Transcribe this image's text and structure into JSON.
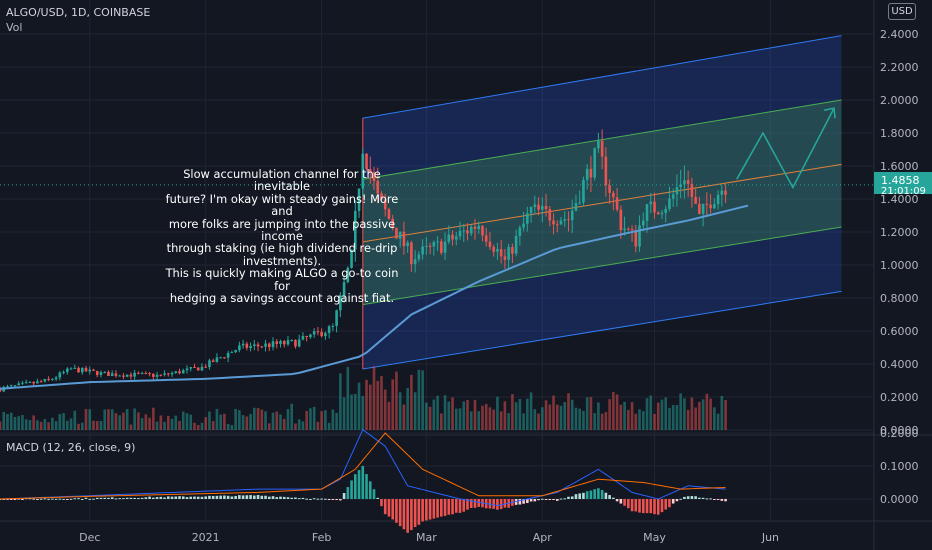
{
  "header": {
    "title": "ALGO/USD, 1D, COINBASE",
    "vol_label": "Vol",
    "macd_label": "MACD (12, 26, close, 9)",
    "currency": "USD"
  },
  "note": "Slow accumulation channel for the inevitable\nfuture? I'm okay with steady gains! More and\nmore folks are jumping into the passive income\nthrough staking (ie high dividend re-drip investments).\nThis is quickly making ALGO a go-to coin for\nhedging a savings account against fiat.",
  "last_price": {
    "value": "1.4858",
    "countdown": "21:01:09"
  },
  "colors": {
    "up": "#26a69a",
    "down": "#ef5350",
    "ma": "#5b9bd5",
    "channel_blue": "#2962ff",
    "channel_green": "#4caf50",
    "midline": "#f57c00",
    "macd_line": "#2962ff",
    "signal_line": "#ff6d00",
    "projection": "#26a69a"
  },
  "chart_data": [
    {
      "type": "candlestick",
      "title": "ALGO/USD, 1D, COINBASE",
      "ylim": [
        0.0,
        2.5
      ],
      "y_ticks": [
        "2.4000",
        "2.2000",
        "2.0000",
        "1.8000",
        "1.6000",
        "1.4000",
        "1.2000",
        "1.0000",
        "0.8000",
        "0.6000",
        "0.4000",
        "0.2000",
        "0.0000"
      ],
      "x_ticks": [
        "Dec",
        "2021",
        "Feb",
        "Mar",
        "Apr",
        "May",
        "Jun"
      ],
      "x_range": [
        "2020-11-07",
        "2021-06-20"
      ],
      "anchors": [
        [
          "2020-11-07",
          0.25
        ],
        [
          "2020-11-20",
          0.3
        ],
        [
          "2020-11-26",
          0.37
        ],
        [
          "2020-12-05",
          0.34
        ],
        [
          "2020-12-20",
          0.33
        ],
        [
          "2020-12-31",
          0.38
        ],
        [
          "2021-01-10",
          0.5
        ],
        [
          "2021-01-25",
          0.53
        ],
        [
          "2021-02-04",
          0.62
        ],
        [
          "2021-02-09",
          1.05
        ],
        [
          "2021-02-12",
          1.73
        ],
        [
          "2021-02-16",
          1.4
        ],
        [
          "2021-02-21",
          1.2
        ],
        [
          "2021-02-25",
          1.05
        ],
        [
          "2021-03-05",
          1.12
        ],
        [
          "2021-03-15",
          1.25
        ],
        [
          "2021-03-22",
          1.02
        ],
        [
          "2021-03-29",
          1.33
        ],
        [
          "2021-04-08",
          1.28
        ],
        [
          "2021-04-14",
          1.6
        ],
        [
          "2021-04-16",
          1.68
        ],
        [
          "2021-04-22",
          1.25
        ],
        [
          "2021-04-26",
          1.15
        ],
        [
          "2021-04-28",
          1.32
        ],
        [
          "2021-05-05",
          1.38
        ],
        [
          "2021-05-09",
          1.55
        ],
        [
          "2021-05-13",
          1.28
        ],
        [
          "2021-05-16",
          1.4
        ],
        [
          "2021-05-20",
          1.4858
        ]
      ],
      "ma_anchors": [
        [
          "2020-11-07",
          0.25
        ],
        [
          "2020-12-01",
          0.29
        ],
        [
          "2021-01-01",
          0.31
        ],
        [
          "2021-01-25",
          0.34
        ],
        [
          "2021-02-12",
          0.45
        ],
        [
          "2021-02-25",
          0.7
        ],
        [
          "2021-03-15",
          0.9
        ],
        [
          "2021-04-05",
          1.1
        ],
        [
          "2021-04-25",
          1.2
        ],
        [
          "2021-05-10",
          1.27
        ],
        [
          "2021-05-26",
          1.36
        ]
      ],
      "channel": {
        "start": "2021-02-12",
        "end": "2021-06-20",
        "mid_start": 1.14,
        "mid_end": 1.61,
        "inner_start": 1.52,
        "inner_end": 2.0,
        "inner_low_start": 0.76,
        "inner_low_end": 1.23,
        "outer_start": 1.89,
        "outer_end": 2.39,
        "outer_low_start": 0.37,
        "outer_low_end": 0.84
      },
      "projection": [
        [
          "2021-05-23",
          1.52
        ],
        [
          "2021-05-30",
          1.8
        ],
        [
          "2021-06-07",
          1.47
        ],
        [
          "2021-06-18",
          1.95
        ]
      ],
      "last_price": 1.4858
    },
    {
      "type": "bar",
      "title": "Vol",
      "note": "daily volume bars colored by candle direction"
    },
    {
      "type": "line",
      "title": "MACD (12, 26, close, 9)",
      "ylim": [
        -0.15,
        0.2
      ],
      "y_ticks": [
        "0.2000",
        "0.1000",
        "0.0000"
      ],
      "series": [
        {
          "name": "MACD",
          "anchors": [
            [
              "2020-11-07",
              0.0
            ],
            [
              "2020-12-01",
              0.01
            ],
            [
              "2021-01-15",
              0.03
            ],
            [
              "2021-02-01",
              0.03
            ],
            [
              "2021-02-06",
              0.06
            ],
            [
              "2021-02-12",
              0.21
            ],
            [
              "2021-02-18",
              0.16
            ],
            [
              "2021-02-24",
              0.04
            ],
            [
              "2021-03-10",
              0.0
            ],
            [
              "2021-03-20",
              -0.02
            ],
            [
              "2021-04-05",
              0.02
            ],
            [
              "2021-04-16",
              0.09
            ],
            [
              "2021-04-25",
              0.02
            ],
            [
              "2021-05-02",
              0.0
            ],
            [
              "2021-05-10",
              0.04
            ],
            [
              "2021-05-20",
              0.03
            ]
          ]
        },
        {
          "name": "Signal",
          "anchors": [
            [
              "2020-11-07",
              0.0
            ],
            [
              "2020-12-01",
              0.008
            ],
            [
              "2021-01-15",
              0.02
            ],
            [
              "2021-02-01",
              0.03
            ],
            [
              "2021-02-10",
              0.09
            ],
            [
              "2021-02-18",
              0.2
            ],
            [
              "2021-02-28",
              0.09
            ],
            [
              "2021-03-15",
              0.01
            ],
            [
              "2021-04-01",
              0.01
            ],
            [
              "2021-04-16",
              0.06
            ],
            [
              "2021-04-28",
              0.05
            ],
            [
              "2021-05-08",
              0.03
            ],
            [
              "2021-05-20",
              0.035
            ]
          ]
        }
      ]
    }
  ]
}
